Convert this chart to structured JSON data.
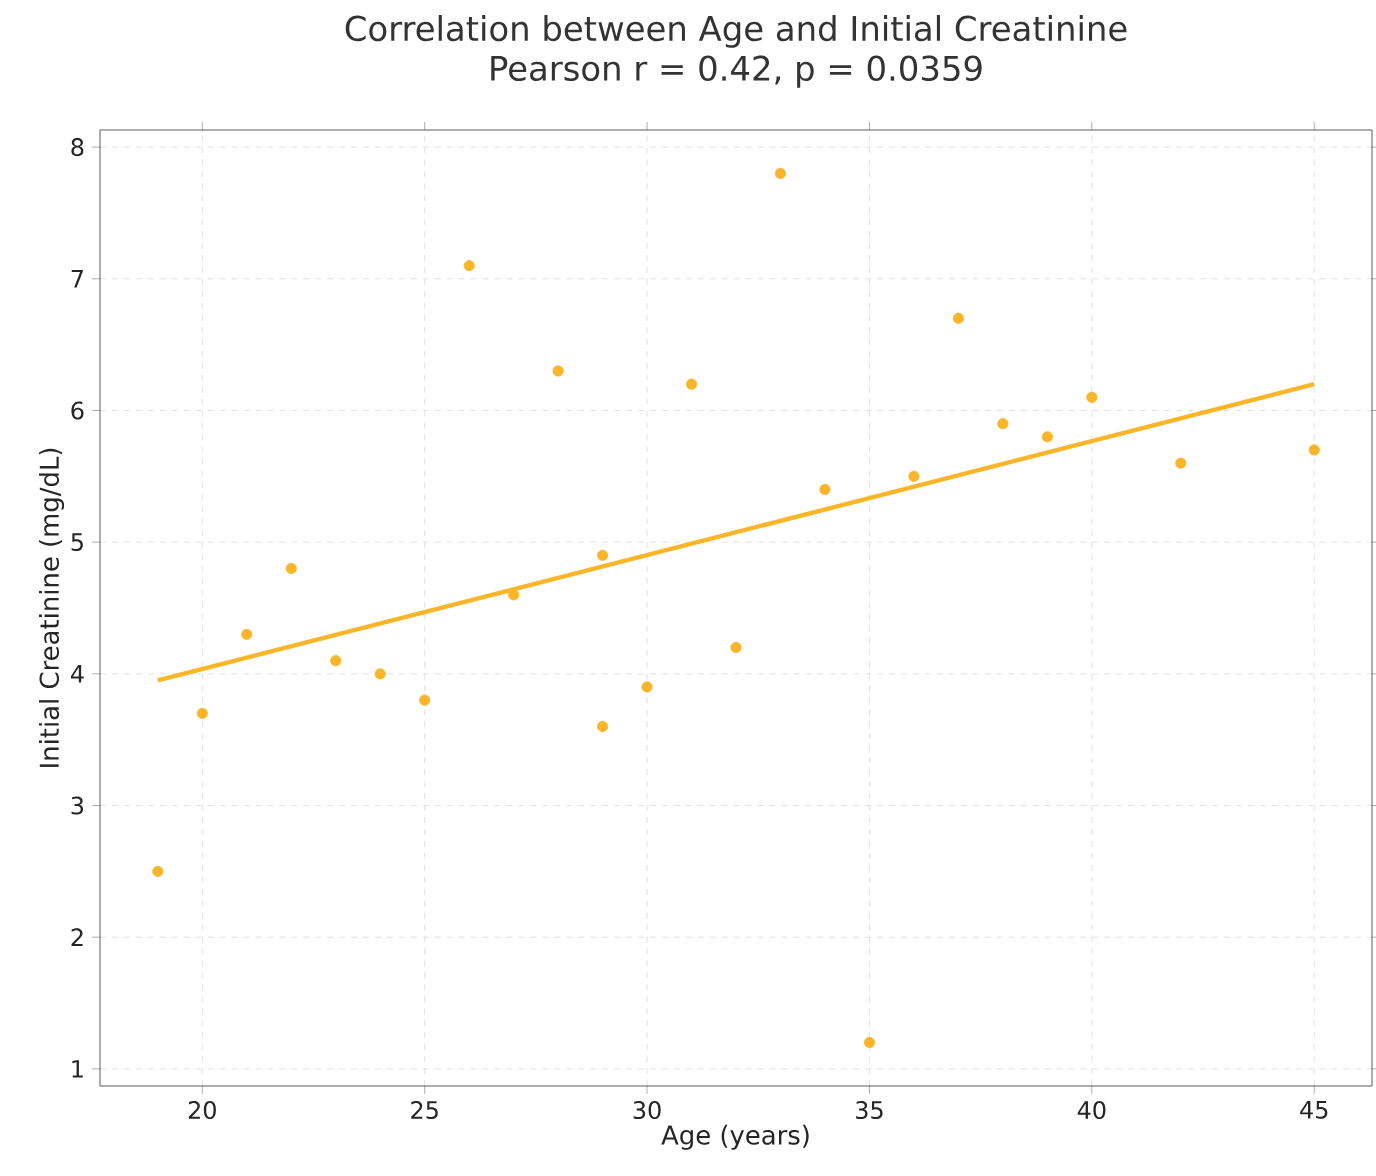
{
  "chart_data": {
    "type": "scatter",
    "title": "Correlation between Age and Initial Creatinine",
    "subtitle": "Pearson r = 0.42, p = 0.0359",
    "xlabel": "Age (years)",
    "ylabel": "Initial Creatinine (mg/dL)",
    "x": [
      19,
      20,
      21,
      22,
      23,
      24,
      25,
      26,
      27,
      28,
      29,
      29,
      30,
      31,
      32,
      33,
      34,
      35,
      36,
      37,
      38,
      39,
      40,
      42,
      45
    ],
    "series": [
      {
        "color": "#fbb529",
        "values": [
          2.5,
          3.7,
          4.3,
          4.8,
          4.1,
          4.0,
          3.8,
          7.1,
          4.6,
          6.3,
          4.9,
          3.6,
          3.9,
          6.2,
          4.2,
          7.8,
          5.4,
          1.2,
          5.5,
          6.7,
          5.9,
          5.8,
          6.1,
          5.6,
          5.7
        ]
      },
      {
        "type": "line",
        "marker": "none",
        "color": "#fbb529",
        "x": [
          19,
          45
        ],
        "values": [
          3.95,
          6.2
        ]
      }
    ],
    "xlim": [
      17.7,
      46.3
    ],
    "ylim": [
      0.87,
      8.13
    ],
    "xticks": [
      20,
      25,
      30,
      35,
      40,
      45
    ],
    "yticks": [
      1,
      2,
      3,
      4,
      5,
      6,
      7,
      8
    ],
    "grid": true,
    "marker": "circle"
  }
}
